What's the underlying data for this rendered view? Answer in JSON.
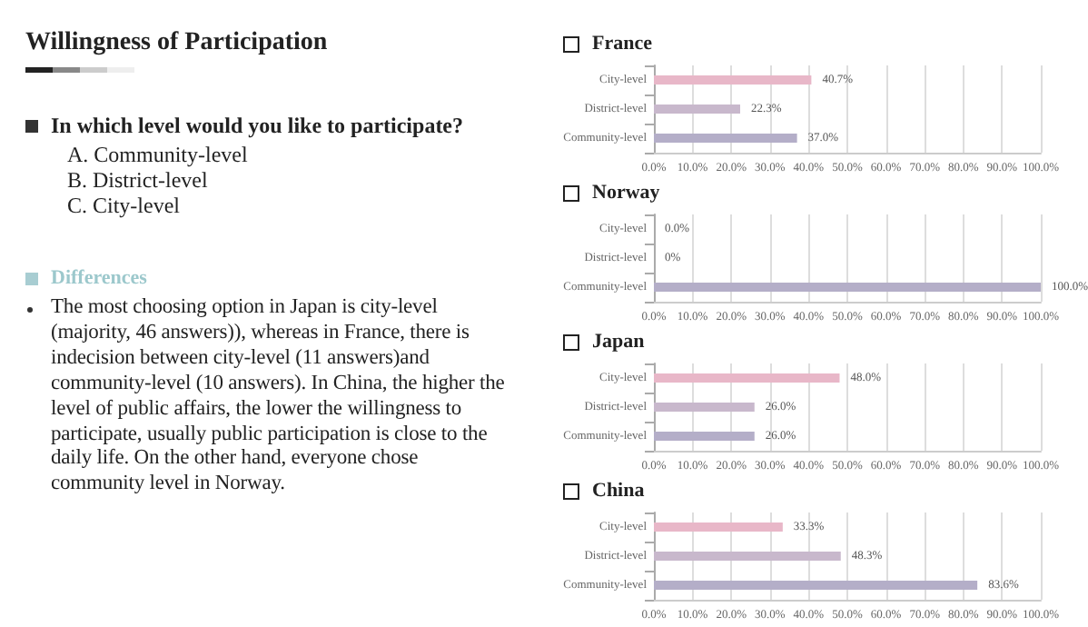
{
  "chart_data": [
    {
      "type": "other",
      "title": "Willingness of Participation",
      "annotations": [
        "In which level would you like to participate?",
        "A. Community-level",
        "B. District-level",
        "C. City-level",
        "Differences",
        "The most choosing option in Japan is city-level (majority, 46 answers)), whereas in France, there is indecision between city-level (11 answers)and community-level (10 answers). In China, the higher the level of public affairs, the lower the willingness to participate, usually public participation is close to the daily life. On the other hand, everyone chose community level in Norway."
      ]
    },
    {
      "type": "bar",
      "orientation": "horizontal",
      "title": "France",
      "categories": [
        "City-level",
        "District-level",
        "Community-level"
      ],
      "values": [
        40.7,
        22.3,
        37.0
      ],
      "colors": [
        "#e8b7c8",
        "#c8b8cc",
        "#b4aec8"
      ],
      "value_labels": [
        "40.7%",
        "22.3%",
        "37.0%"
      ],
      "xlim": [
        0,
        100
      ],
      "xticks": [
        {
          "value": 0,
          "label": "0.0%"
        },
        {
          "value": 10,
          "label": "10.0%"
        },
        {
          "value": 20,
          "label": "20.0%"
        },
        {
          "value": 30,
          "label": "30.0%"
        },
        {
          "value": 40,
          "label": "40.0%"
        },
        {
          "value": 50,
          "label": "50.0%"
        },
        {
          "value": 60,
          "label": "60.0%"
        },
        {
          "value": 70,
          "label": "70.0%"
        },
        {
          "value": 80,
          "label": "80.0%"
        },
        {
          "value": 90,
          "label": "90.0%"
        },
        {
          "value": 100,
          "label": "100.0%"
        }
      ],
      "grid": "x"
    },
    {
      "type": "bar",
      "orientation": "horizontal",
      "title": "Norway",
      "categories": [
        "City-level",
        "District-level",
        "Community-level"
      ],
      "values": [
        0,
        0,
        100
      ],
      "colors": [
        "#e8b7c8",
        "#c8b8cc",
        "#b4aec8"
      ],
      "value_labels": [
        "0.0%",
        "0%",
        "100.0%"
      ],
      "xlim": [
        0,
        100
      ],
      "xticks": [
        {
          "value": 0,
          "label": "0.0%"
        },
        {
          "value": 10,
          "label": "10.0%"
        },
        {
          "value": 20,
          "label": "20.0%"
        },
        {
          "value": 30,
          "label": "30.0%"
        },
        {
          "value": 40,
          "label": "40.0%"
        },
        {
          "value": 50,
          "label": "50.0%"
        },
        {
          "value": 60,
          "label": "60.0%"
        },
        {
          "value": 70,
          "label": "70.0%"
        },
        {
          "value": 80,
          "label": "80.0%"
        },
        {
          "value": 90,
          "label": "90.0%"
        },
        {
          "value": 100,
          "label": "100.0%"
        }
      ],
      "grid": "x"
    },
    {
      "type": "bar",
      "orientation": "horizontal",
      "title": "Japan",
      "categories": [
        "City-level",
        "District-level",
        "Community-level"
      ],
      "values": [
        48.0,
        26.0,
        26.0
      ],
      "colors": [
        "#e8b7c8",
        "#c8b8cc",
        "#b4aec8"
      ],
      "value_labels": [
        "48.0%",
        "26.0%",
        "26.0%"
      ],
      "xlim": [
        0,
        100
      ],
      "xticks": [
        {
          "value": 0,
          "label": "0.0%"
        },
        {
          "value": 10,
          "label": "10.0%"
        },
        {
          "value": 20,
          "label": "20.0%"
        },
        {
          "value": 30,
          "label": "30.0%"
        },
        {
          "value": 40,
          "label": "40.0%"
        },
        {
          "value": 50,
          "label": "50.0%"
        },
        {
          "value": 60,
          "label": "60.0%"
        },
        {
          "value": 70,
          "label": "70.0%"
        },
        {
          "value": 80,
          "label": "80.0%"
        },
        {
          "value": 90,
          "label": "90.0%"
        },
        {
          "value": 100,
          "label": "100.0%"
        }
      ],
      "grid": "x"
    },
    {
      "type": "bar",
      "orientation": "horizontal",
      "title": "China",
      "categories": [
        "City-level",
        "District-level",
        "Community-level"
      ],
      "values": [
        33.3,
        48.3,
        83.6
      ],
      "colors": [
        "#e8b7c8",
        "#c8b8cc",
        "#b4aec8"
      ],
      "value_labels": [
        "33.3%",
        "48.3%",
        "83.6%"
      ],
      "xlim": [
        0,
        100
      ],
      "xticks": [
        {
          "value": 0,
          "label": "0.0%"
        },
        {
          "value": 10,
          "label": "10.0%"
        },
        {
          "value": 20,
          "label": "20.0%"
        },
        {
          "value": 30,
          "label": "30.0%"
        },
        {
          "value": 40,
          "label": "40.0%"
        },
        {
          "value": 50,
          "label": "50.0%"
        },
        {
          "value": 60,
          "label": "60.0%"
        },
        {
          "value": 70,
          "label": "70.0%"
        },
        {
          "value": 80,
          "label": "80.0%"
        },
        {
          "value": 90,
          "label": "90.0%"
        },
        {
          "value": 100,
          "label": "100.0%"
        }
      ],
      "grid": "x"
    }
  ]
}
